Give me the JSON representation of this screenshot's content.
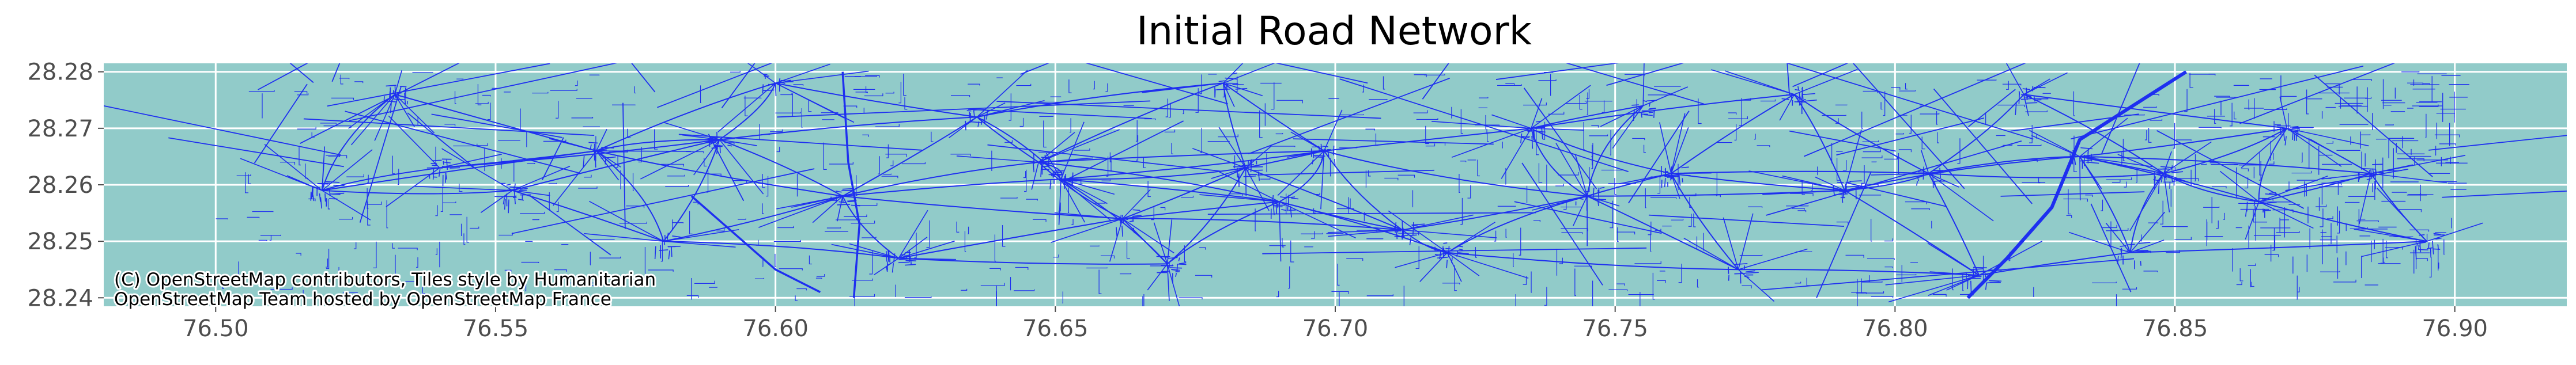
{
  "chart_data": {
    "type": "map",
    "title": "Initial Road Network",
    "xlabel": "",
    "ylabel": "",
    "xlim": [
      76.48,
      76.92
    ],
    "ylim": [
      28.2385,
      28.2815
    ],
    "x_ticks": [
      76.5,
      76.55,
      76.6,
      76.65,
      76.7,
      76.75,
      76.8,
      76.85,
      76.9
    ],
    "x_tick_labels": [
      "76.50",
      "76.55",
      "76.60",
      "76.65",
      "76.70",
      "76.75",
      "76.80",
      "76.85",
      "76.90"
    ],
    "y_ticks": [
      28.24,
      28.25,
      28.26,
      28.27,
      28.28
    ],
    "y_tick_labels": [
      "28.24",
      "28.25",
      "28.26",
      "28.27",
      "28.28"
    ],
    "grid": true,
    "background_color": "#91cbc9",
    "road_color": "#1e2ff0",
    "attribution_lines": [
      "(C) OpenStreetMap contributors, Tiles style by Humanitarian",
      "OpenStreetMap Team hosted by OpenStreetMap France"
    ],
    "network_extent": {
      "lon": [
        76.5,
        76.9
      ],
      "lat": [
        28.24,
        28.28
      ]
    },
    "villages": [
      [
        76.519,
        28.259
      ],
      [
        76.54,
        28.263
      ],
      [
        76.553,
        28.259
      ],
      [
        76.568,
        28.266
      ],
      [
        76.59,
        28.268
      ],
      [
        76.612,
        28.258
      ],
      [
        76.622,
        28.247
      ],
      [
        76.647,
        28.264
      ],
      [
        76.651,
        28.261
      ],
      [
        76.67,
        28.246
      ],
      [
        76.684,
        28.263
      ],
      [
        76.69,
        28.257
      ],
      [
        76.698,
        28.266
      ],
      [
        76.72,
        28.248
      ],
      [
        76.735,
        28.27
      ],
      [
        76.76,
        28.262
      ],
      [
        76.772,
        28.245
      ],
      [
        76.791,
        28.259
      ],
      [
        76.806,
        28.262
      ],
      [
        76.823,
        28.276
      ],
      [
        76.833,
        28.265
      ],
      [
        76.848,
        28.262
      ],
      [
        76.865,
        28.257
      ],
      [
        76.885,
        28.262
      ],
      [
        76.6,
        28.278
      ],
      [
        76.68,
        28.278
      ],
      [
        76.782,
        28.276
      ],
      [
        76.532,
        28.276
      ],
      [
        76.712,
        28.252
      ],
      [
        76.745,
        28.258
      ],
      [
        76.815,
        28.244
      ],
      [
        76.842,
        28.248
      ],
      [
        76.58,
        28.25
      ],
      [
        76.636,
        28.272
      ],
      [
        76.662,
        28.254
      ],
      [
        76.755,
        28.274
      ],
      [
        76.87,
        28.27
      ],
      [
        76.895,
        28.25
      ]
    ],
    "highways": [
      [
        [
          76.813,
          28.24
        ],
        [
          76.82,
          28.247
        ],
        [
          76.828,
          28.256
        ],
        [
          76.833,
          28.268
        ],
        [
          76.852,
          28.28
        ]
      ],
      [
        [
          76.585,
          28.258
        ],
        [
          76.6,
          28.245
        ],
        [
          76.608,
          28.241
        ]
      ],
      [
        [
          76.612,
          28.28
        ],
        [
          76.613,
          28.264
        ],
        [
          76.615,
          28.253
        ],
        [
          76.614,
          28.24
        ]
      ]
    ]
  }
}
